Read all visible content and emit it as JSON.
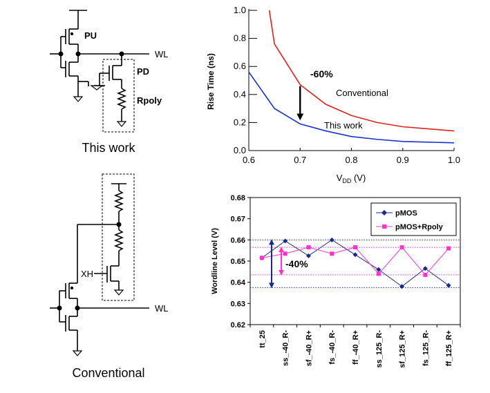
{
  "schematic_top": {
    "label_pu": "PU",
    "label_pd": "PD",
    "label_rpoly": "Rpoly",
    "label_wl": "WL",
    "caption": "This work"
  },
  "schematic_bottom": {
    "label_xh": "XH",
    "label_wl": "WL",
    "caption": "Conventional"
  },
  "chart_data": [
    {
      "type": "line",
      "title": "",
      "xlabel": "V",
      "xlabel_sub": "DD",
      "xlabel_unit": " (V)",
      "ylabel": "Rise Time (ns)",
      "xlim": [
        0.6,
        1.0
      ],
      "ylim": [
        0.0,
        1.0
      ],
      "xticks": [
        "0.6",
        "0.7",
        "0.8",
        "0.9",
        "1.0"
      ],
      "yticks": [
        "0.0",
        "0.2",
        "0.4",
        "0.6",
        "0.8",
        "1.0"
      ],
      "series": [
        {
          "name": "Conventional",
          "color": "#e02020",
          "x": [
            0.64,
            0.65,
            0.7,
            0.75,
            0.8,
            0.85,
            0.9,
            0.95,
            1.0
          ],
          "values": [
            1.0,
            0.76,
            0.47,
            0.33,
            0.25,
            0.2,
            0.17,
            0.155,
            0.14
          ]
        },
        {
          "name": "This work",
          "color": "#1a2fd0",
          "x": [
            0.6,
            0.65,
            0.7,
            0.75,
            0.8,
            0.85,
            0.9,
            0.95,
            1.0
          ],
          "values": [
            0.56,
            0.3,
            0.19,
            0.14,
            0.1,
            0.08,
            0.065,
            0.06,
            0.055
          ]
        }
      ],
      "annotation": {
        "text": "-60%",
        "x": 0.7,
        "from": 0.47,
        "to": 0.19
      }
    },
    {
      "type": "line",
      "title": "",
      "xlabel": "",
      "ylabel": "Wordline Level (V)",
      "ylim": [
        0.62,
        0.68
      ],
      "yticks": [
        "0.68",
        "0.67",
        "0.66",
        "0.65",
        "0.64",
        "0.63",
        "0.62"
      ],
      "categories": [
        "tt_25",
        "ss_-40_R-",
        "sf_-40_R+",
        "fs_-40_R-",
        "ff_-40_R+",
        "ss_125_R-",
        "sf_125_R+",
        "fs_125_R-",
        "ff_125_R+"
      ],
      "legend_position": "top-right",
      "series": [
        {
          "name": "pMOS",
          "color": "#1a2a8a",
          "values": [
            0.6515,
            0.6595,
            0.6525,
            0.66,
            0.653,
            0.646,
            0.638,
            0.6465,
            0.6385
          ]
        },
        {
          "name": "pMOS+Rpoly",
          "color": "#ff33cc",
          "values": [
            0.6515,
            0.6535,
            0.6565,
            0.6535,
            0.6565,
            0.644,
            0.6565,
            0.6435,
            0.656
          ]
        }
      ],
      "reference_lines": {
        "pMOS": [
          0.66,
          0.6375
        ],
        "pMOS+Rpoly": [
          0.6565,
          0.6435
        ]
      },
      "annotation": {
        "text": "-40%"
      }
    }
  ]
}
